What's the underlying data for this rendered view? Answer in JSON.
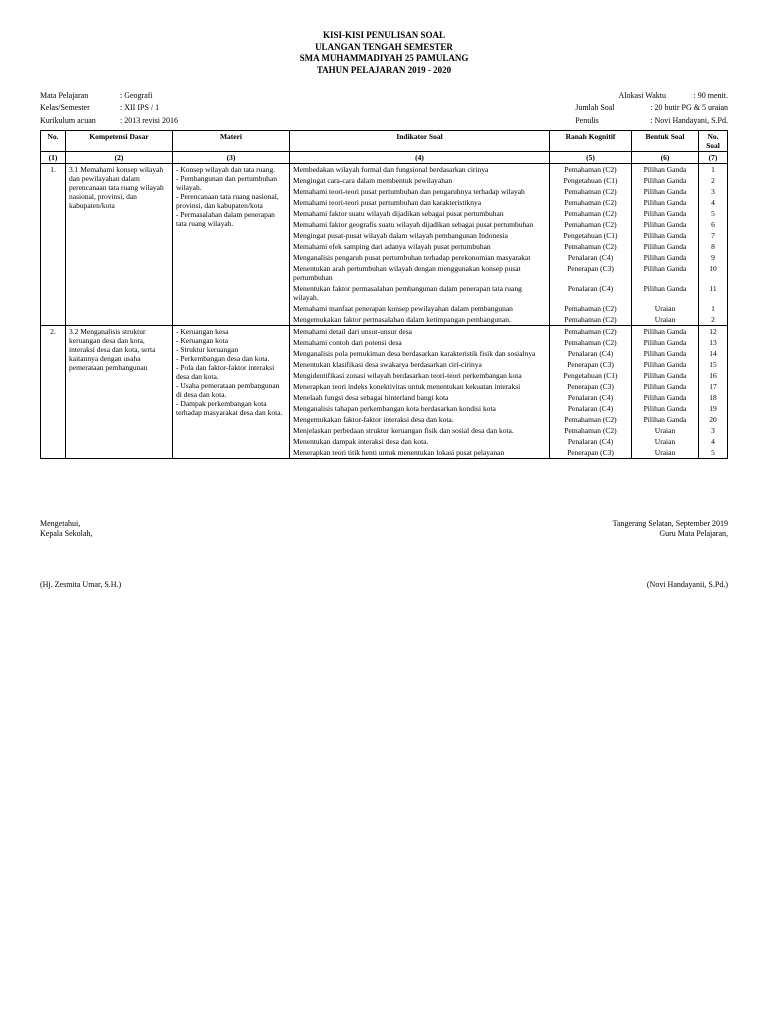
{
  "title": {
    "l1": "KISI-KISI PENULISAN SOAL",
    "l2": "ULANGAN TENGAH SEMESTER",
    "l3": "SMA MUHAMMADIYAH 25 PAMULANG",
    "l4": "TAHUN PELAJARAN 2019 - 2020"
  },
  "meta": {
    "mapel_l": "Mata Pelajaran",
    "mapel_v": ": Geografi",
    "kelas_l": "Kelas/Semester",
    "kelas_v": ": XII IPS / 1",
    "kur_l": "Kurikulum acuan",
    "kur_v": ": 2013 revisi 2016",
    "waktu_l": "Alokasi Waktu",
    "waktu_v": ": 90 menit.",
    "jumlah_l": "Jumlah Soal",
    "jumlah_v": ": 20 butir PG & 5 uraian",
    "penulis_l": "Penulis",
    "penulis_v": ": Novi Handayani, S.Pd."
  },
  "head": {
    "no": "No.",
    "kd": "Kompetensi Dasar",
    "mat": "Materi",
    "ind": "Indikator Soal",
    "rk": "Ranah Kognitif",
    "bs": "Bentuk Soal",
    "ns": "No. Soal",
    "c1": "(1)",
    "c2": "(2)",
    "c3": "(3)",
    "c4": "(4)",
    "c5": "(5)",
    "c6": "(6)",
    "c7": "(7)"
  },
  "row1": {
    "no": "1.",
    "kd": "3.1 Memahami konsep wilayah dan pewilayahan dalam perencanaan tata ruang wilayah nasional, provinsi, dan kabupaten/kota",
    "mat": "- Konsep wilayah dan tata ruang.\n- Pembangunan dan pertumbuhan wilayah.\n- Perencanaan tata ruang nasional, provinsi, dan kabupaten/kota\n- Permasalahan dalam penerapan tata ruang wilayah.",
    "ind": [
      [
        "Membedakan wilayah formal dan fungsional berdasarkan cirinya",
        "Pemahaman (C2)",
        "Pilihan Ganda",
        "1"
      ],
      [
        "Mengingat cara-cara dalam membentuk pewilayahan",
        "Pengetahuan (C1)",
        "Pilihan Ganda",
        "2"
      ],
      [
        "Memahami teori-teori pusat pertumbuhan dan pengaruhnya terhadap wilayah",
        "Pemahaman (C2)",
        "Pilihan Ganda",
        "3"
      ],
      [
        "Memahami teori-teori pusat pertumbuhan dan karakteristiknya",
        "Pemahaman (C2)",
        "Pilihan Ganda",
        "4"
      ],
      [
        "Memahami faktor suatu wilayah dijadikan sebagai pusat pertumbuhan",
        "Pemahaman (C2)",
        "Pilihan Ganda",
        "5"
      ],
      [
        "Memahami faktor geografis suatu wilayah dijadikan sebagai pusat pertumbuhan",
        "Pemahaman (C2)",
        "Pilihan Ganda",
        "6"
      ],
      [
        "Mengingat pusat-pusat wilayah dalam wilayah pembangunan Indonesia",
        "Pengetahuan (C1)",
        "Pilihan Ganda",
        "7"
      ],
      [
        "Memahami efek samping dari adanya wilayah pusat pertumbuhan",
        "Pemahaman (C2)",
        "Pilihan Ganda",
        "8"
      ],
      [
        "Menganalisis pengaruh pusat pertumbuhan terhadap perekonomian masyarakat",
        "Penalaran (C4)",
        "Pilihan Ganda",
        "9"
      ],
      [
        "Menentukan arah pertumbuhan wilayah dengan menggunakan konsep pusat pertumbuhan",
        "Penerapan (C3)",
        "Pilihan Ganda",
        "10"
      ],
      [
        "Menentukan faktor permasalahan pembangunan dalam penerapan tata ruang wilayah.",
        "Penalaran (C4)",
        "Pilihan Ganda",
        "11"
      ],
      [
        "Memahami manfaat penerapan konsep pewilayahan dalam pembangunan",
        "Pemahaman (C2)",
        "Uraian",
        "1"
      ],
      [
        "Mengemukakan faktor permasalahan dalam ketimpangan pembangunan.",
        "Pemahaman (C2)",
        "Uraian",
        "2"
      ]
    ]
  },
  "row2": {
    "no": "2.",
    "kd": "3.2 Menganalisis struktur keruangan desa dan kota, interaksi desa dan kota, serta kaitannya dengan usaha pemerataan pembangunan",
    "mat": "- Keruangan kesa\n- Keruangan kota\n- Struktur keruangan\n- Perkembangan desa dan kota.\n- Pola dan faktor-faktor interaksi desa dan kota.\n- Usaha pemerataan pembangunan di desa dan kota.\n- Dampak perkembangan kota terhadap masyarakat desa dan kota.",
    "ind": [
      [
        "Memahami detail dari unsur-unsur desa",
        "Pemahaman (C2)",
        "Pilihan Ganda",
        "12"
      ],
      [
        "Memahami contoh dari potensi desa",
        "Pemahaman (C2)",
        "Pilihan Ganda",
        "13"
      ],
      [
        "Menganalisis pola pemukiman desa berdasarkan karakteristik fisik dan sosialnya",
        "Penalaran (C4)",
        "Pilihan Ganda",
        "14"
      ],
      [
        "Menentukan klasifikasi desa swakarya berdasarkan ciri-cirinya",
        "Penerapan (C3)",
        "Pilihan Ganda",
        "15"
      ],
      [
        "Mengidentifikasi zonasi wilayah berdasarkan teori-teori perkembangan kota",
        "Pengetahuan (C1)",
        "Pilihan Ganda",
        "16"
      ],
      [
        "Menerapkan teori indeks konektivitas untuk menentukan kekuatan interaksi",
        "Penerapan (C3)",
        "Pilihan Ganda",
        "17"
      ],
      [
        "Menelaah fungsi desa sebagai hinterland bangi kota",
        "Penalaran (C4)",
        "Pilihan Ganda",
        "18"
      ],
      [
        "Menganalisis tahapan perkembangan kota berdasarkan kondisi kota",
        "Penalaran (C4)",
        "Pilihan Ganda",
        "19"
      ],
      [
        "Mengemukakan faktor-faktor interaksi desa dan kota.",
        "Pemahaman (C2)",
        "Pilihan Ganda",
        "20"
      ],
      [
        "Menjelaskan perbedaan struktur keruangan fisik dan sosial desa dan kota.",
        "Pemahaman (C2)",
        "Uraian",
        "3"
      ],
      [
        "Menentukan dampak interaksi desa dan kota.",
        "Penalaran (C4)",
        "Uraian",
        "4"
      ],
      [
        "Menerapkan teori titik henti untuk menentukan lokasi pusat pelayanan",
        "Penerapan (C3)",
        "Uraian",
        "5"
      ]
    ]
  },
  "sign": {
    "left1": "Mengetahui,",
    "left2": "Kepala Sekolah,",
    "leftname": "(Hj. Zesmita Umar, S.H.)",
    "right1": "Tangerang Selatan, September 2019",
    "right2": "Guru Mata Pelajaran,",
    "rightname": "(Novi Handayanii, S.Pd.)"
  }
}
